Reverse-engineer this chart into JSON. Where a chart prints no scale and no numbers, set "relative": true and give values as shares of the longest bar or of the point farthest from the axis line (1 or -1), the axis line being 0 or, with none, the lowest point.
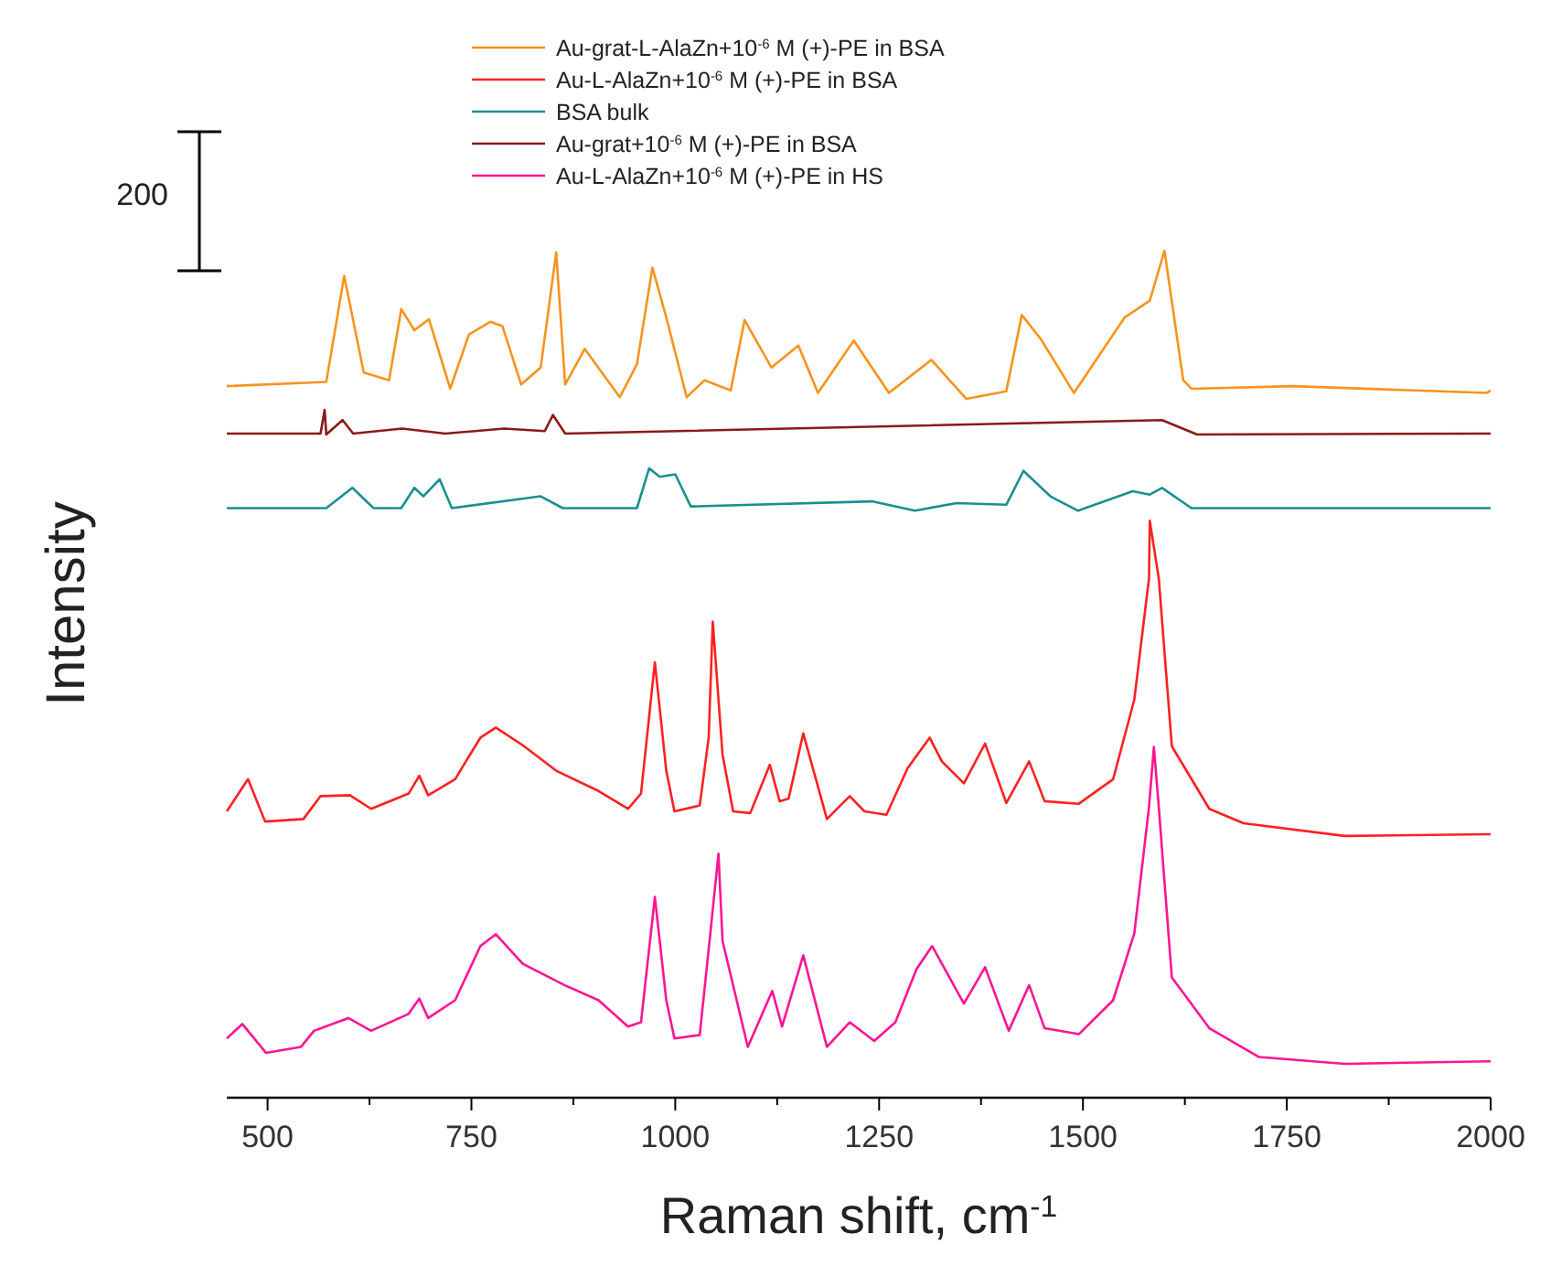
{
  "chart_data": {
    "type": "line",
    "relative": true,
    "xlabel": "Raman shift, cm$^{-1}$",
    "ylabel": "Intensity",
    "legend": "top",
    "marker": "none",
    "line_style": "solid",
    "grid": false,
    "tick_labels": "x",
    "annotations": [
      "200"
    ],
    "xlim": [
      450,
      2000
    ],
    "xticks": [
      500,
      {
        "value": 625,
        "label": null
      },
      750,
      {
        "value": 875,
        "label": null
      },
      1000,
      {
        "value": 1125,
        "label": null
      },
      1250,
      {
        "value": 1375,
        "label": null
      },
      1500,
      {
        "value": 1625,
        "label": null
      },
      1750,
      {
        "value": 1875,
        "label": null
      },
      2000
    ],
    "series": [
      {
        "name": "Au-grat-L-AlaZn+10$^{-6}$ M (+)-PE in BSA",
        "color": "#f7931e",
        "x": [
          450,
          572,
          594,
          618,
          649,
          664,
          680,
          698,
          724,
          747,
          773,
          788,
          811,
          835,
          854,
          865,
          889,
          932,
          953,
          972,
          989,
          1014,
          1036,
          1068,
          1085,
          1118,
          1151,
          1175,
          1219,
          1262,
          1314,
          1357,
          1406,
          1425,
          1448,
          1489,
          1551,
          1582,
          1600,
          1623,
          1633,
          1758,
          1995,
          2000
        ],
        "values": [
          0.84,
          0.845,
          0.97,
          0.856,
          0.847,
          0.931,
          0.906,
          0.919,
          0.837,
          0.901,
          0.916,
          0.911,
          0.842,
          0.862,
          0.998,
          0.842,
          0.884,
          0.827,
          0.866,
          0.98,
          0.921,
          0.827,
          0.847,
          0.835,
          0.918,
          0.862,
          0.888,
          0.832,
          0.894,
          0.832,
          0.871,
          0.825,
          0.834,
          0.924,
          0.896,
          0.832,
          0.921,
          0.941,
          1.0,
          0.847,
          0.837,
          0.84,
          0.832,
          0.835
        ]
      },
      {
        "name": "Au-L-AlaZn+10$^{-6}$ M (+)-PE in BSA",
        "color": "#ff2020",
        "x": [
          450,
          476,
          497,
          544,
          565,
          601,
          627,
          673,
          686,
          697,
          730,
          761,
          780,
          813,
          854,
          906,
          942,
          958,
          975,
          989,
          999,
          1030,
          1041,
          1046,
          1058,
          1071,
          1092,
          1116,
          1128,
          1139,
          1157,
          1186,
          1214,
          1232,
          1259,
          1285,
          1312,
          1327,
          1354,
          1380,
          1406,
          1434,
          1453,
          1495,
          1537,
          1563,
          1581,
          1582,
          1593,
          1609,
          1655,
          1697,
          1821,
          1997,
          2000
        ],
        "values": [
          0.338,
          0.376,
          0.326,
          0.329,
          0.356,
          0.357,
          0.341,
          0.359,
          0.38,
          0.357,
          0.376,
          0.425,
          0.437,
          0.416,
          0.386,
          0.362,
          0.341,
          0.359,
          0.514,
          0.386,
          0.338,
          0.345,
          0.425,
          0.562,
          0.405,
          0.338,
          0.336,
          0.393,
          0.35,
          0.353,
          0.43,
          0.329,
          0.356,
          0.338,
          0.334,
          0.389,
          0.425,
          0.397,
          0.371,
          0.418,
          0.348,
          0.397,
          0.35,
          0.347,
          0.376,
          0.47,
          0.613,
          0.681,
          0.613,
          0.415,
          0.341,
          0.324,
          0.309,
          0.311,
          0.311
        ]
      },
      {
        "name": "BSA bulk",
        "color": "#1a9090",
        "x": [
          450,
          572,
          604,
          630,
          664,
          680,
          691,
          711,
          726,
          835,
          862,
          953,
          968,
          981,
          1000,
          1019,
          1241,
          1294,
          1345,
          1406,
          1427,
          1460,
          1494,
          1561,
          1582,
          1597,
          1633,
          2000
        ],
        "values": [
          0.696,
          0.696,
          0.72,
          0.696,
          0.696,
          0.72,
          0.71,
          0.73,
          0.696,
          0.71,
          0.696,
          0.696,
          0.743,
          0.733,
          0.736,
          0.698,
          0.704,
          0.693,
          0.702,
          0.7,
          0.74,
          0.71,
          0.693,
          0.716,
          0.712,
          0.72,
          0.696,
          0.696
        ]
      },
      {
        "name": "Au-grat+10$^{-6}$ M (+)-PE in BSA",
        "color": "#8b1a1a",
        "x": [
          450,
          565,
          570,
          572,
          592,
          605,
          665,
          718,
          790,
          840,
          850,
          865,
          1597,
          1640,
          2000
        ],
        "values": [
          0.784,
          0.784,
          0.812,
          0.783,
          0.8,
          0.784,
          0.79,
          0.784,
          0.79,
          0.787,
          0.806,
          0.784,
          0.8,
          0.783,
          0.784
        ]
      },
      {
        "name": "Au-L-AlaZn+10$^{-6}$ M (+)-PE in HS",
        "color": "#ff1493",
        "x": [
          450,
          469,
          498,
          541,
          557,
          599,
          627,
          673,
          686,
          697,
          730,
          761,
          780,
          813,
          864,
          906,
          942,
          958,
          975,
          989,
          999,
          1030,
          1041,
          1053,
          1058,
          1089,
          1119,
          1131,
          1157,
          1186,
          1214,
          1244,
          1270,
          1296,
          1315,
          1354,
          1380,
          1409,
          1434,
          1453,
          1495,
          1537,
          1563,
          1581,
          1587,
          1593,
          1609,
          1655,
          1716,
          1821,
          1997,
          2000
        ],
        "values": [
          0.07,
          0.087,
          0.053,
          0.06,
          0.079,
          0.094,
          0.079,
          0.099,
          0.117,
          0.094,
          0.115,
          0.179,
          0.193,
          0.158,
          0.133,
          0.115,
          0.084,
          0.089,
          0.237,
          0.115,
          0.07,
          0.074,
          0.175,
          0.288,
          0.185,
          0.06,
          0.126,
          0.084,
          0.168,
          0.06,
          0.089,
          0.067,
          0.089,
          0.152,
          0.179,
          0.111,
          0.154,
          0.079,
          0.133,
          0.082,
          0.075,
          0.115,
          0.194,
          0.343,
          0.414,
          0.343,
          0.142,
          0.082,
          0.048,
          0.04,
          0.043,
          0.043
        ]
      }
    ]
  }
}
